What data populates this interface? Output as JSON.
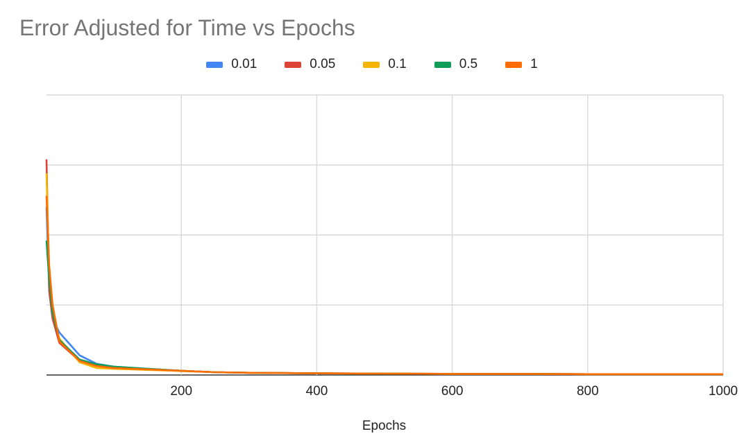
{
  "chart_data": {
    "type": "line",
    "title": "Error Adjusted for Time vs Epochs",
    "xlabel": "Epochs",
    "ylabel": "",
    "xlim": [
      1,
      1000
    ],
    "ylim": [
      0,
      1
    ],
    "x_ticks": [
      "200",
      "400",
      "600",
      "800",
      "1000"
    ],
    "x_tick_values": [
      200,
      400,
      600,
      800,
      1000
    ],
    "y_gridlines": [
      0,
      0.25,
      0.5,
      0.75,
      1
    ],
    "grid": true,
    "legend_position": "top",
    "x": [
      1,
      5,
      10,
      20,
      50,
      75,
      100,
      150,
      200,
      250,
      300,
      400,
      500,
      600,
      700,
      800,
      900,
      1000
    ],
    "series": [
      {
        "name": "0.01",
        "color": "#4285f4",
        "values": [
          0.6,
          0.3,
          0.2,
          0.152,
          0.07,
          0.04,
          0.03,
          0.022,
          0.015,
          0.01,
          0.008,
          0.006,
          0.005,
          0.004,
          0.004,
          0.003,
          0.003,
          0.003
        ]
      },
      {
        "name": "0.05",
        "color": "#db4437",
        "values": [
          0.77,
          0.3,
          0.2,
          0.115,
          0.05,
          0.035,
          0.027,
          0.02,
          0.015,
          0.01,
          0.008,
          0.006,
          0.005,
          0.004,
          0.004,
          0.003,
          0.003,
          0.003
        ]
      },
      {
        "name": "0.1",
        "color": "#f4b400",
        "values": [
          0.72,
          0.36,
          0.22,
          0.13,
          0.045,
          0.025,
          0.022,
          0.018,
          0.014,
          0.01,
          0.008,
          0.006,
          0.005,
          0.004,
          0.004,
          0.003,
          0.003,
          0.003
        ]
      },
      {
        "name": "0.5",
        "color": "#0f9d58",
        "values": [
          0.48,
          0.34,
          0.22,
          0.125,
          0.055,
          0.038,
          0.03,
          0.022,
          0.015,
          0.01,
          0.008,
          0.006,
          0.005,
          0.004,
          0.004,
          0.003,
          0.003,
          0.003
        ]
      },
      {
        "name": "1",
        "color": "#ff6d01",
        "values": [
          0.64,
          0.39,
          0.25,
          0.12,
          0.05,
          0.032,
          0.025,
          0.02,
          0.015,
          0.01,
          0.008,
          0.006,
          0.005,
          0.004,
          0.004,
          0.003,
          0.003,
          0.003
        ]
      }
    ]
  }
}
